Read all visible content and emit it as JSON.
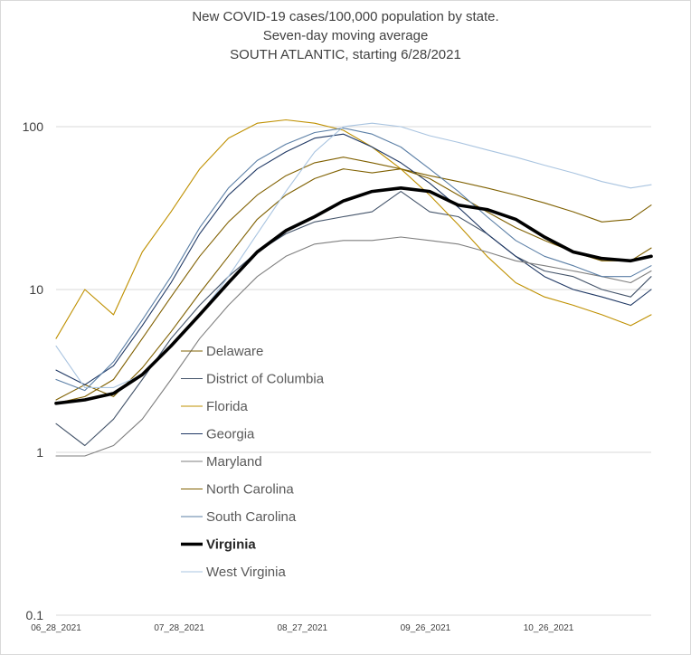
{
  "chart_data": {
    "type": "line",
    "title": "New COVID-19 cases/100,000 population by state.",
    "subtitle": "Seven-day moving average",
    "subtitle2": "SOUTH ATLANTIC, starting 6/28/2021",
    "xlabel": "",
    "ylabel": "",
    "y_scale": "log",
    "ylim": [
      0.1,
      200
    ],
    "y_ticks": [
      0.1,
      1,
      10,
      100
    ],
    "y_tick_labels": [
      "0.1",
      "1",
      "10",
      "100"
    ],
    "x_range": [
      "2021-06-28",
      "2021-11-20"
    ],
    "x_ticks": [
      "2021-06-28",
      "2021-07-28",
      "2021-08-27",
      "2021-09-26",
      "2021-10-26"
    ],
    "x_tick_labels": [
      "06_28_2021",
      "07_28_2021",
      "08_27_2021",
      "09_26_2021",
      "10_26_2021"
    ],
    "grid": "horizontal",
    "legend_position": "lower-left",
    "series": [
      {
        "name": "Delaware",
        "color": "#7f6000",
        "width": 1.1,
        "x": [
          "2021-06-28",
          "2021-07-05",
          "2021-07-12",
          "2021-07-19",
          "2021-07-26",
          "2021-08-02",
          "2021-08-09",
          "2021-08-16",
          "2021-08-23",
          "2021-08-30",
          "2021-09-06",
          "2021-09-13",
          "2021-09-20",
          "2021-09-27",
          "2021-10-04",
          "2021-10-11",
          "2021-10-18",
          "2021-10-25",
          "2021-11-01",
          "2021-11-08",
          "2021-11-15",
          "2021-11-20"
        ],
        "y": [
          2.1,
          2.6,
          2.2,
          3.3,
          5.5,
          9.5,
          16,
          27,
          38,
          48,
          55,
          52,
          55,
          50,
          46,
          42,
          38,
          34,
          30,
          26,
          27,
          33
        ]
      },
      {
        "name": "District of Columbia",
        "color": "#44546a",
        "width": 1.1,
        "x": [
          "2021-06-28",
          "2021-07-05",
          "2021-07-12",
          "2021-07-19",
          "2021-07-26",
          "2021-08-02",
          "2021-08-09",
          "2021-08-16",
          "2021-08-23",
          "2021-08-30",
          "2021-09-06",
          "2021-09-13",
          "2021-09-20",
          "2021-09-27",
          "2021-10-04",
          "2021-10-11",
          "2021-10-18",
          "2021-10-25",
          "2021-11-01",
          "2021-11-08",
          "2021-11-15",
          "2021-11-20"
        ],
        "y": [
          1.5,
          1.1,
          1.6,
          2.8,
          5,
          8,
          12,
          17,
          22,
          26,
          28,
          30,
          40,
          30,
          28,
          22,
          16,
          13,
          12,
          10,
          9,
          12
        ]
      },
      {
        "name": "Florida",
        "color": "#bf9000",
        "width": 1.1,
        "x": [
          "2021-06-28",
          "2021-07-05",
          "2021-07-12",
          "2021-07-19",
          "2021-07-26",
          "2021-08-02",
          "2021-08-09",
          "2021-08-16",
          "2021-08-23",
          "2021-08-30",
          "2021-09-06",
          "2021-09-13",
          "2021-09-20",
          "2021-09-27",
          "2021-10-04",
          "2021-10-11",
          "2021-10-18",
          "2021-10-25",
          "2021-11-01",
          "2021-11-08",
          "2021-11-15",
          "2021-11-20"
        ],
        "y": [
          5,
          10,
          7,
          17,
          30,
          55,
          85,
          105,
          110,
          105,
          95,
          75,
          55,
          38,
          25,
          16,
          11,
          9,
          8,
          7,
          6,
          7
        ]
      },
      {
        "name": "Georgia",
        "color": "#1f3864",
        "width": 1.1,
        "x": [
          "2021-06-28",
          "2021-07-05",
          "2021-07-12",
          "2021-07-19",
          "2021-07-26",
          "2021-08-02",
          "2021-08-09",
          "2021-08-16",
          "2021-08-23",
          "2021-08-30",
          "2021-09-06",
          "2021-09-13",
          "2021-09-20",
          "2021-09-27",
          "2021-10-04",
          "2021-10-11",
          "2021-10-18",
          "2021-10-25",
          "2021-11-01",
          "2021-11-08",
          "2021-11-15",
          "2021-11-20"
        ],
        "y": [
          3.2,
          2.6,
          3.4,
          6,
          11,
          22,
          38,
          55,
          70,
          85,
          90,
          75,
          60,
          45,
          32,
          22,
          16,
          12,
          10,
          9,
          8,
          10
        ]
      },
      {
        "name": "Maryland",
        "color": "#7f7f7f",
        "width": 1.1,
        "x": [
          "2021-06-28",
          "2021-07-05",
          "2021-07-12",
          "2021-07-19",
          "2021-07-26",
          "2021-08-02",
          "2021-08-09",
          "2021-08-16",
          "2021-08-23",
          "2021-08-30",
          "2021-09-06",
          "2021-09-13",
          "2021-09-20",
          "2021-09-27",
          "2021-10-04",
          "2021-10-11",
          "2021-10-18",
          "2021-10-25",
          "2021-11-01",
          "2021-11-08",
          "2021-11-15",
          "2021-11-20"
        ],
        "y": [
          0.95,
          0.95,
          1.1,
          1.6,
          2.8,
          5,
          8,
          12,
          16,
          19,
          20,
          20,
          21,
          20,
          19,
          17,
          15,
          14,
          13,
          12,
          11,
          13
        ]
      },
      {
        "name": "North Carolina",
        "color": "#806000",
        "width": 1.1,
        "x": [
          "2021-06-28",
          "2021-07-05",
          "2021-07-12",
          "2021-07-19",
          "2021-07-26",
          "2021-08-02",
          "2021-08-09",
          "2021-08-16",
          "2021-08-23",
          "2021-08-30",
          "2021-09-06",
          "2021-09-13",
          "2021-09-20",
          "2021-09-27",
          "2021-10-04",
          "2021-10-11",
          "2021-10-18",
          "2021-10-25",
          "2021-11-01",
          "2021-11-08",
          "2021-11-15",
          "2021-11-20"
        ],
        "y": [
          2,
          2.2,
          2.8,
          5,
          9,
          16,
          26,
          38,
          50,
          60,
          65,
          60,
          55,
          48,
          38,
          30,
          24,
          20,
          17,
          15,
          15,
          18
        ]
      },
      {
        "name": "South Carolina",
        "color": "#5b7fa6",
        "width": 1.1,
        "x": [
          "2021-06-28",
          "2021-07-05",
          "2021-07-12",
          "2021-07-19",
          "2021-07-26",
          "2021-08-02",
          "2021-08-09",
          "2021-08-16",
          "2021-08-23",
          "2021-08-30",
          "2021-09-06",
          "2021-09-13",
          "2021-09-20",
          "2021-09-27",
          "2021-10-04",
          "2021-10-11",
          "2021-10-18",
          "2021-10-25",
          "2021-11-01",
          "2021-11-08",
          "2021-11-15",
          "2021-11-20"
        ],
        "y": [
          2.8,
          2.4,
          3.6,
          6.5,
          12,
          24,
          42,
          62,
          78,
          92,
          98,
          90,
          75,
          55,
          40,
          28,
          20,
          16,
          14,
          12,
          12,
          14
        ]
      },
      {
        "name": "Virginia",
        "color": "#000000",
        "width": 3.6,
        "bold": true,
        "x": [
          "2021-06-28",
          "2021-07-05",
          "2021-07-12",
          "2021-07-19",
          "2021-07-26",
          "2021-08-02",
          "2021-08-09",
          "2021-08-16",
          "2021-08-23",
          "2021-08-30",
          "2021-09-06",
          "2021-09-13",
          "2021-09-20",
          "2021-09-27",
          "2021-10-04",
          "2021-10-11",
          "2021-10-18",
          "2021-10-25",
          "2021-11-01",
          "2021-11-08",
          "2021-11-15",
          "2021-11-20"
        ],
        "y": [
          2,
          2.1,
          2.3,
          3,
          4.5,
          7,
          11,
          17,
          23,
          28,
          35,
          40,
          42,
          40,
          33,
          31,
          27,
          21,
          17,
          15.5,
          15,
          16
        ]
      },
      {
        "name": "West Virginia",
        "color": "#a9c4e0",
        "width": 1.1,
        "x": [
          "2021-06-28",
          "2021-07-05",
          "2021-07-12",
          "2021-07-19",
          "2021-07-26",
          "2021-08-02",
          "2021-08-09",
          "2021-08-16",
          "2021-08-23",
          "2021-08-30",
          "2021-09-06",
          "2021-09-13",
          "2021-09-20",
          "2021-09-27",
          "2021-10-04",
          "2021-10-11",
          "2021-10-18",
          "2021-10-25",
          "2021-11-01",
          "2021-11-08",
          "2021-11-15",
          "2021-11-20"
        ],
        "y": [
          4.5,
          2.5,
          2.5,
          3,
          4.5,
          7,
          12,
          22,
          40,
          70,
          100,
          105,
          100,
          88,
          80,
          72,
          65,
          58,
          52,
          46,
          42,
          44
        ]
      }
    ]
  }
}
